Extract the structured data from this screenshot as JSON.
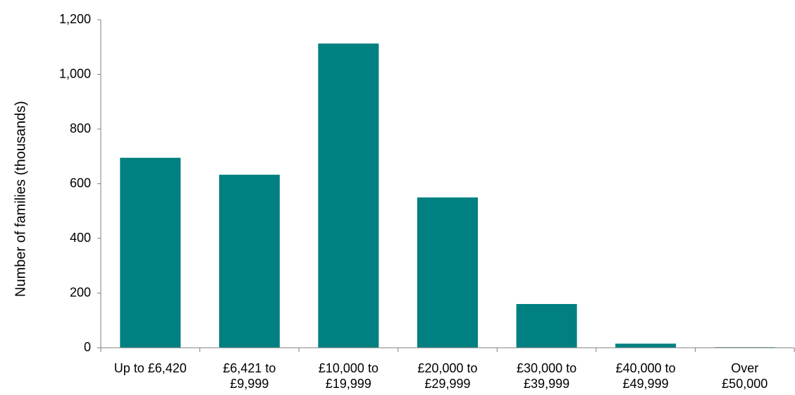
{
  "chart_data": {
    "type": "bar",
    "categories": [
      [
        "Up to £6,420"
      ],
      [
        "£6,421 to",
        "£9,999"
      ],
      [
        "£10,000 to",
        "£19,999"
      ],
      [
        "£20,000 to",
        "£29,999"
      ],
      [
        "£30,000 to",
        "£39,999"
      ],
      [
        "£40,000 to",
        "£49,999"
      ],
      [
        "Over",
        "£50,000"
      ]
    ],
    "values": [
      695,
      633,
      1113,
      550,
      160,
      15,
      2
    ],
    "title": "",
    "xlabel": "",
    "ylabel": "Number of families (thousands)",
    "ylim": [
      0,
      1200
    ],
    "yticks": [
      0,
      200,
      400,
      600,
      800,
      1000,
      1200
    ],
    "ytick_labels": [
      "0",
      "200",
      "400",
      "600",
      "800",
      "1,000",
      "1,200"
    ],
    "bar_color": "#008080",
    "grid": false,
    "legend": "none"
  }
}
